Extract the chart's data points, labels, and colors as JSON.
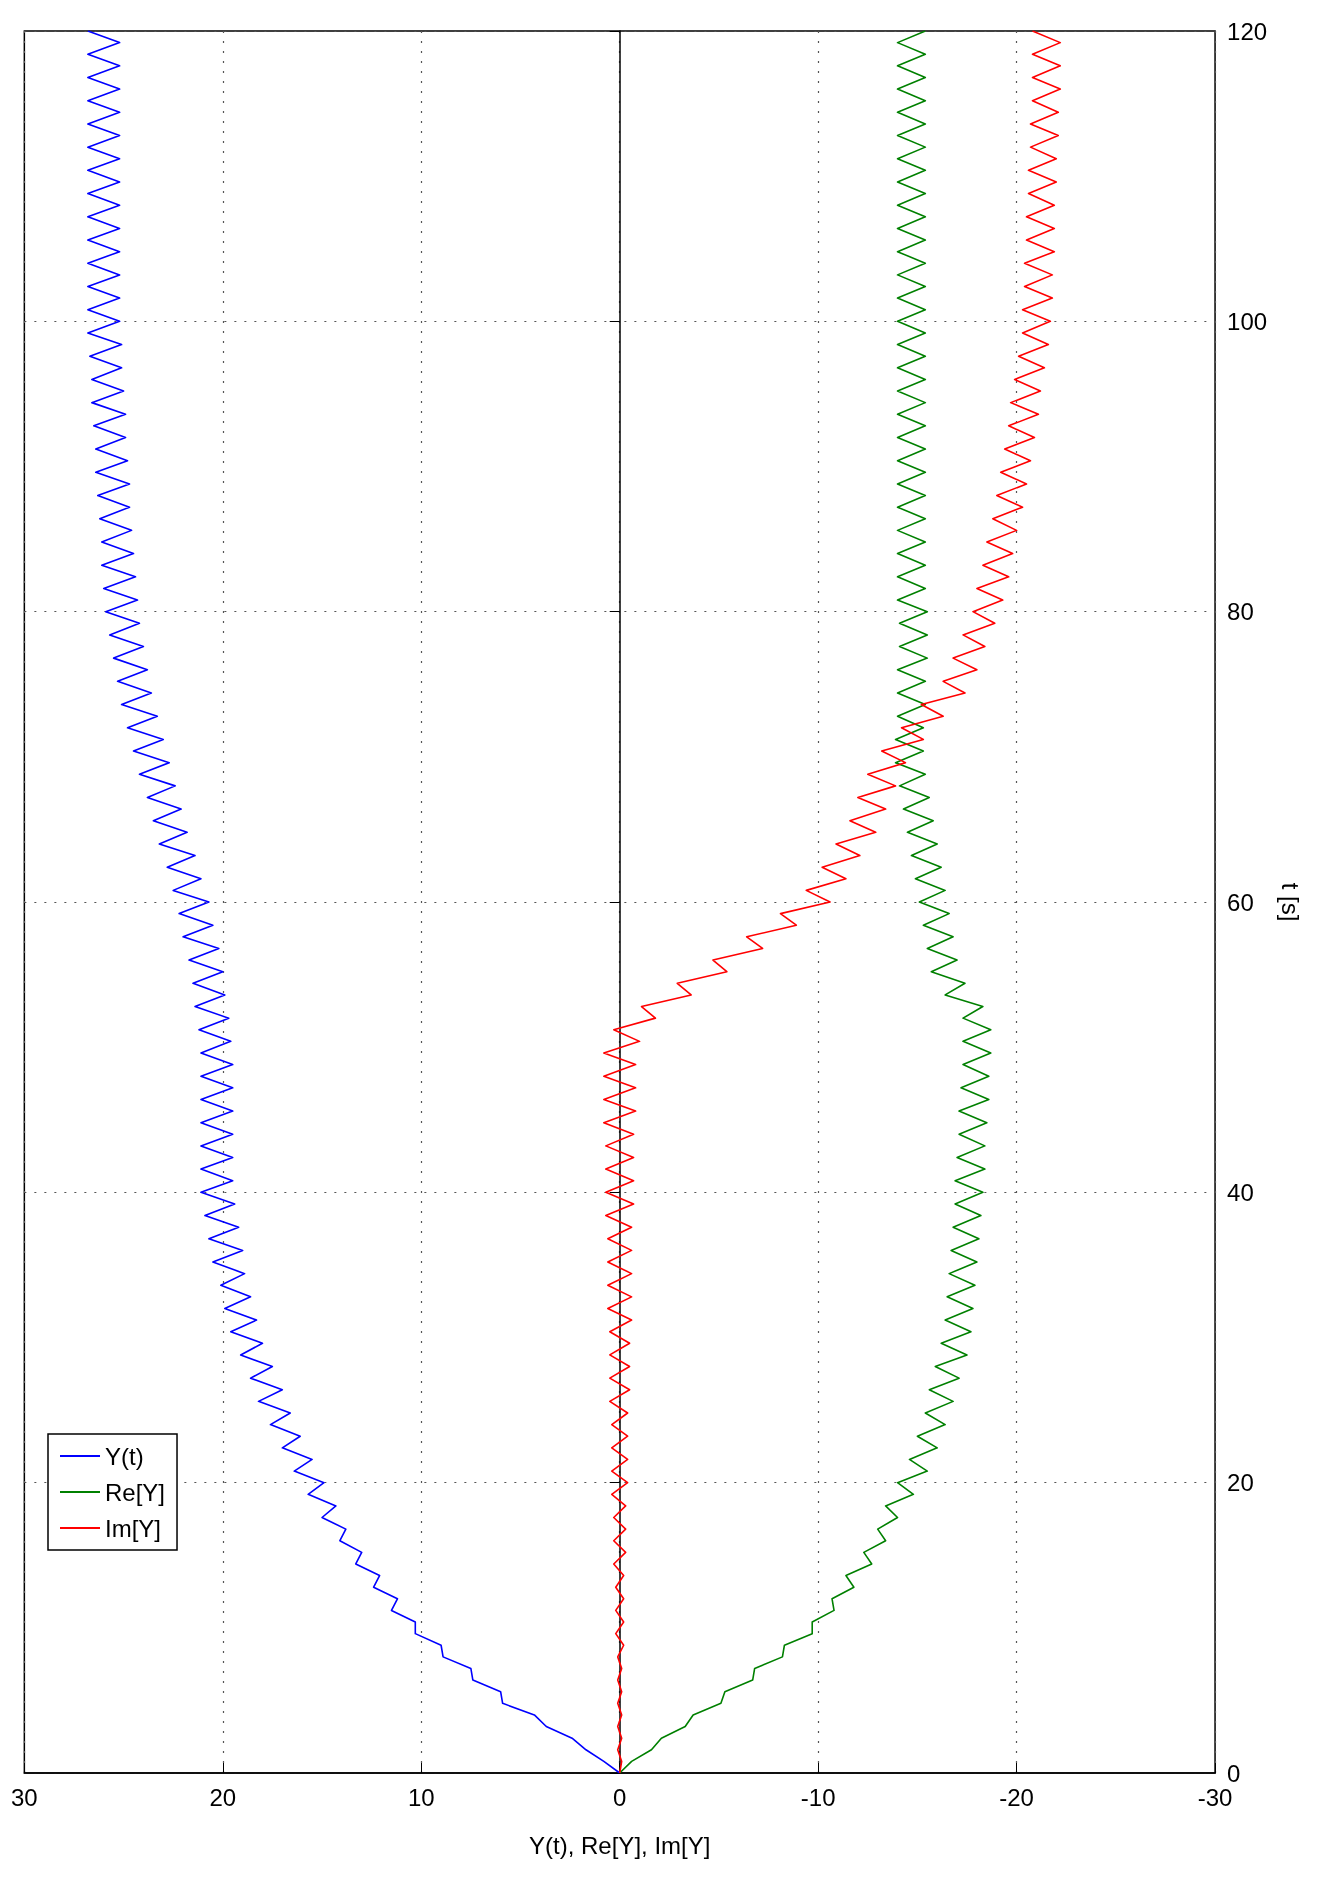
{
  "chart_data": {
    "type": "line",
    "xlabel": "Y(t), Re[Y], Im[Y]",
    "ylabel": "t [s]",
    "series": [
      {
        "name": "Y(t)",
        "color": "#0000ff",
        "x": [
          0,
          0.8,
          1.7,
          2.4,
          3.7,
          4.3,
          5.9,
          6.0,
          7.4,
          7.5,
          8.9,
          9.0,
          10.3,
          10.3,
          11.5,
          11.2,
          12.4,
          12.1,
          13.3,
          13.0,
          14.1,
          13.8,
          15.0,
          14.3,
          15.7,
          14.9,
          16.4,
          15.5,
          17.0,
          16.1,
          17.6,
          16.6,
          18.2,
          17.0,
          18.6,
          17.5,
          19.1,
          18.0,
          19.6,
          18.3,
          19.9,
          18.6,
          20.1,
          18.9,
          20.5,
          19.0,
          20.7,
          19.2,
          20.9,
          19.4,
          21.1,
          19.5,
          21.1,
          19.5,
          21.1,
          19.5,
          21.1,
          19.5,
          21.1,
          19.5,
          21.1,
          19.5,
          21.1,
          19.6,
          21.2,
          19.7,
          21.4,
          19.9,
          21.5,
          20.0,
          21.7,
          20.2,
          22.0,
          20.5,
          22.2,
          20.7,
          22.5,
          21.1,
          22.8,
          21.4,
          23.2,
          21.8,
          23.5,
          22.1,
          23.8,
          22.4,
          24.2,
          22.7,
          24.5,
          23.0,
          24.8,
          23.3,
          25.1,
          23.6,
          25.3,
          23.8,
          25.5,
          24.0,
          25.7,
          24.2,
          25.9,
          24.3,
          26.0,
          24.4,
          26.1,
          24.5,
          26.1,
          24.6,
          26.2,
          24.7,
          26.3,
          24.7,
          26.4,
          24.8,
          26.4,
          24.9,
          26.5,
          24.9,
          26.6,
          25.0,
          26.6,
          25.1,
          26.7,
          25.1,
          26.8,
          25.2,
          26.8,
          25.2,
          26.8,
          25.2,
          26.8,
          25.2,
          26.8,
          25.2,
          26.8,
          25.2,
          26.8,
          25.2,
          26.8,
          25.2,
          26.8,
          25.2,
          26.8,
          25.2,
          26.8,
          25.2,
          26.8,
          25.2,
          26.8,
          25.2,
          26.8
        ],
        "values": [
          0,
          0.8,
          1.6,
          2.4,
          3.2,
          4,
          4.8,
          5.6,
          6.4,
          7.2,
          8,
          8.8,
          9.6,
          10.4,
          11.2,
          12,
          12.8,
          13.6,
          14.4,
          15.2,
          16,
          16.8,
          17.6,
          18.4,
          19.2,
          20,
          20.8,
          21.6,
          22.4,
          23.2,
          24,
          24.8,
          25.6,
          26.4,
          27.2,
          28,
          28.8,
          29.6,
          30.4,
          31.2,
          32,
          32.8,
          33.6,
          34.4,
          35.2,
          36,
          36.8,
          37.6,
          38.4,
          39.2,
          40,
          40.8,
          41.6,
          42.4,
          43.2,
          44,
          44.8,
          45.6,
          46.4,
          47.2,
          48,
          48.8,
          49.6,
          50.4,
          51.2,
          52,
          52.8,
          53.6,
          54.4,
          55.2,
          56,
          56.8,
          57.6,
          58.4,
          59.2,
          60,
          60.8,
          61.6,
          62.4,
          63.2,
          64,
          64.8,
          65.6,
          66.4,
          67.2,
          68,
          68.8,
          69.6,
          70.4,
          71.2,
          72,
          72.8,
          73.6,
          74.4,
          75.2,
          76,
          76.8,
          77.6,
          78.4,
          79.2,
          80,
          80.8,
          81.6,
          82.4,
          83.2,
          84,
          84.8,
          85.6,
          86.4,
          87.2,
          88,
          88.8,
          89.6,
          90.4,
          91.2,
          92,
          92.8,
          93.6,
          94.4,
          95.2,
          96,
          96.8,
          97.6,
          98.4,
          99.2,
          100,
          100.8,
          101.6,
          102.4,
          103.2,
          104,
          104.8,
          105.6,
          106.4,
          107.2,
          108,
          108.8,
          109.6,
          110.4,
          111.2,
          112,
          112.8,
          113.6,
          114.4,
          115.2,
          116,
          116.8,
          117.6,
          118.4,
          119.2,
          120
        ]
      },
      {
        "name": "Re[Y]",
        "color": "#008000",
        "x": [
          0,
          -0.6,
          -1.6,
          -2.1,
          -3.3,
          -3.7,
          -5.1,
          -5.3,
          -6.7,
          -6.8,
          -8.2,
          -8.3,
          -9.7,
          -9.7,
          -10.8,
          -10.7,
          -11.8,
          -11.4,
          -12.7,
          -12.3,
          -13.4,
          -13.0,
          -14.0,
          -13.4,
          -14.8,
          -14.0,
          -15.5,
          -14.6,
          -16.0,
          -15.0,
          -16.4,
          -15.4,
          -16.8,
          -15.6,
          -17.1,
          -15.9,
          -17.5,
          -16.2,
          -17.7,
          -16.4,
          -17.8,
          -16.5,
          -17.9,
          -16.6,
          -18.0,
          -16.7,
          -18.1,
          -16.8,
          -18.2,
          -16.9,
          -18.3,
          -16.9,
          -18.4,
          -17.0,
          -18.4,
          -17.1,
          -18.5,
          -17.1,
          -18.6,
          -17.2,
          -18.6,
          -17.3,
          -18.7,
          -17.3,
          -18.7,
          -17.3,
          -18.3,
          -16.4,
          -17.4,
          -15.7,
          -17.0,
          -15.5,
          -16.8,
          -15.3,
          -16.6,
          -15.1,
          -16.4,
          -14.9,
          -16.2,
          -14.7,
          -16.0,
          -14.5,
          -15.8,
          -14.3,
          -15.6,
          -14.1,
          -15.4,
          -13.9,
          -15.3,
          -13.9,
          -15.3,
          -14.0,
          -15.4,
          -14.0,
          -15.4,
          -14.0,
          -15.5,
          -14.1,
          -15.5,
          -14.1,
          -15.5,
          -14.0,
          -15.4,
          -14.0,
          -15.4,
          -14.0,
          -15.4,
          -14.0,
          -15.4,
          -14.0,
          -15.4,
          -14.0,
          -15.4,
          -14.0,
          -15.4,
          -14.0,
          -15.4,
          -14.0,
          -15.4,
          -14.0,
          -15.4,
          -14.0,
          -15.4,
          -14.0,
          -15.4,
          -14.0,
          -15.4,
          -14.0,
          -15.4,
          -14.0,
          -15.4,
          -14.0,
          -15.4,
          -14.0,
          -15.4,
          -14.0,
          -15.4,
          -14.0,
          -15.4,
          -14.0,
          -15.4,
          -14.0,
          -15.4,
          -14.0,
          -15.4,
          -14.0,
          -15.4,
          -14.0,
          -15.4,
          -14.0,
          -15.4
        ],
        "values": [
          0,
          0.8,
          1.6,
          2.4,
          3.2,
          4,
          4.8,
          5.6,
          6.4,
          7.2,
          8,
          8.8,
          9.6,
          10.4,
          11.2,
          12,
          12.8,
          13.6,
          14.4,
          15.2,
          16,
          16.8,
          17.6,
          18.4,
          19.2,
          20,
          20.8,
          21.6,
          22.4,
          23.2,
          24,
          24.8,
          25.6,
          26.4,
          27.2,
          28,
          28.8,
          29.6,
          30.4,
          31.2,
          32,
          32.8,
          33.6,
          34.4,
          35.2,
          36,
          36.8,
          37.6,
          38.4,
          39.2,
          40,
          40.8,
          41.6,
          42.4,
          43.2,
          44,
          44.8,
          45.6,
          46.4,
          47.2,
          48,
          48.8,
          49.6,
          50.4,
          51.2,
          52,
          52.8,
          53.6,
          54.4,
          55.2,
          56,
          56.8,
          57.6,
          58.4,
          59.2,
          60,
          60.8,
          61.6,
          62.4,
          63.2,
          64,
          64.8,
          65.6,
          66.4,
          67.2,
          68,
          68.8,
          69.6,
          70.4,
          71.2,
          72,
          72.8,
          73.6,
          74.4,
          75.2,
          76,
          76.8,
          77.6,
          78.4,
          79.2,
          80,
          80.8,
          81.6,
          82.4,
          83.2,
          84,
          84.8,
          85.6,
          86.4,
          87.2,
          88,
          88.8,
          89.6,
          90.4,
          91.2,
          92,
          92.8,
          93.6,
          94.4,
          95.2,
          96,
          96.8,
          97.6,
          98.4,
          99.2,
          100,
          100.8,
          101.6,
          102.4,
          103.2,
          104,
          104.8,
          105.6,
          106.4,
          107.2,
          108,
          108.8,
          109.6,
          110.4,
          111.2,
          112,
          112.8,
          113.6,
          114.4,
          115.2,
          116,
          116.8,
          117.6,
          118.4,
          119.2,
          120
        ]
      },
      {
        "name": "Im[Y]",
        "color": "#ff0000",
        "x": [
          0,
          -0.1,
          0.1,
          -0.1,
          0.1,
          -0.1,
          0.1,
          -0.1,
          0.1,
          -0.1,
          0.1,
          -0.2,
          0.2,
          -0.2,
          0.2,
          -0.2,
          0.2,
          -0.2,
          0.3,
          -0.3,
          0.3,
          -0.3,
          0.3,
          -0.3,
          0.4,
          -0.4,
          0.4,
          -0.4,
          0.4,
          -0.4,
          0.4,
          -0.4,
          0.5,
          -0.5,
          0.5,
          -0.5,
          0.5,
          -0.5,
          0.5,
          -0.6,
          0.6,
          -0.6,
          0.6,
          -0.6,
          0.6,
          -0.6,
          0.6,
          -0.6,
          0.7,
          -0.7,
          0.7,
          -0.7,
          0.7,
          -0.7,
          0.7,
          -0.7,
          0.8,
          -0.8,
          0.8,
          -0.8,
          0.8,
          -0.8,
          0.8,
          -1.0,
          0.3,
          -1.8,
          -1.1,
          -3.6,
          -2.9,
          -5.4,
          -4.7,
          -7.2,
          -6.4,
          -8.9,
          -8.1,
          -10.6,
          -9.4,
          -11.4,
          -10.2,
          -12.1,
          -10.9,
          -12.9,
          -11.6,
          -13.4,
          -12.0,
          -13.9,
          -12.5,
          -14.4,
          -13.2,
          -15.3,
          -14.2,
          -16.3,
          -15.2,
          -17.4,
          -16.3,
          -18.0,
          -16.8,
          -18.4,
          -17.3,
          -18.9,
          -17.8,
          -19.3,
          -18.0,
          -19.6,
          -18.3,
          -19.8,
          -18.5,
          -20.0,
          -18.8,
          -20.3,
          -19.0,
          -20.5,
          -19.2,
          -20.7,
          -19.4,
          -20.9,
          -19.6,
          -21.1,
          -19.7,
          -21.2,
          -19.9,
          -21.4,
          -20.1,
          -21.6,
          -20.3,
          -21.7,
          -20.3,
          -21.8,
          -20.4,
          -21.8,
          -20.4,
          -21.9,
          -20.5,
          -21.9,
          -20.5,
          -21.9,
          -20.6,
          -22.0,
          -20.6,
          -22.0,
          -20.7,
          -22.1,
          -20.7,
          -22.1,
          -20.8,
          -22.2,
          -20.8,
          -22.2,
          -20.8,
          -22.2,
          -20.8
        ],
        "values": [
          0,
          0.8,
          1.6,
          2.4,
          3.2,
          4,
          4.8,
          5.6,
          6.4,
          7.2,
          8,
          8.8,
          9.6,
          10.4,
          11.2,
          12,
          12.8,
          13.6,
          14.4,
          15.2,
          16,
          16.8,
          17.6,
          18.4,
          19.2,
          20,
          20.8,
          21.6,
          22.4,
          23.2,
          24,
          24.8,
          25.6,
          26.4,
          27.2,
          28,
          28.8,
          29.6,
          30.4,
          31.2,
          32,
          32.8,
          33.6,
          34.4,
          35.2,
          36,
          36.8,
          37.6,
          38.4,
          39.2,
          40,
          40.8,
          41.6,
          42.4,
          43.2,
          44,
          44.8,
          45.6,
          46.4,
          47.2,
          48,
          48.8,
          49.6,
          50.4,
          51.2,
          52,
          52.8,
          53.6,
          54.4,
          55.2,
          56,
          56.8,
          57.6,
          58.4,
          59.2,
          60,
          60.8,
          61.6,
          62.4,
          63.2,
          64,
          64.8,
          65.6,
          66.4,
          67.2,
          68,
          68.8,
          69.6,
          70.4,
          71.2,
          72,
          72.8,
          73.6,
          74.4,
          75.2,
          76,
          76.8,
          77.6,
          78.4,
          79.2,
          80,
          80.8,
          81.6,
          82.4,
          83.2,
          84,
          84.8,
          85.6,
          86.4,
          87.2,
          88,
          88.8,
          89.6,
          90.4,
          91.2,
          92,
          92.8,
          93.6,
          94.4,
          95.2,
          96,
          96.8,
          97.6,
          98.4,
          99.2,
          100,
          100.8,
          101.6,
          102.4,
          103.2,
          104,
          104.8,
          105.6,
          106.4,
          107.2,
          108,
          108.8,
          109.6,
          110.4,
          111.2,
          112,
          112.8,
          113.6,
          114.4,
          115.2,
          116,
          116.8,
          117.6,
          118.4,
          119.2,
          120
        ]
      }
    ],
    "xlim": [
      30,
      -30
    ],
    "xticks": [
      30,
      20,
      10,
      0,
      -10,
      -20,
      -30
    ],
    "ylim": [
      0,
      120
    ],
    "yticks": [
      0,
      20,
      40,
      60,
      80,
      100,
      120
    ],
    "grid": true,
    "legend": "bottom left",
    "marker": "none",
    "line_style": "solid"
  }
}
